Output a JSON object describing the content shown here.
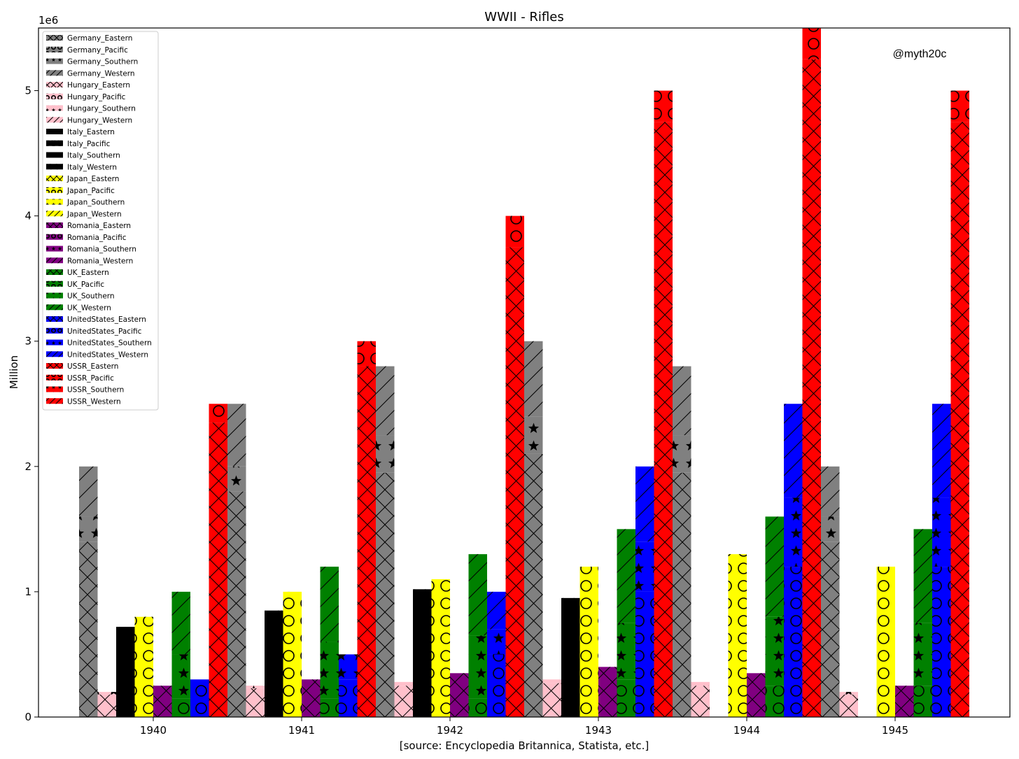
{
  "chart_data": {
    "type": "bar",
    "title": "WWII - Rifles",
    "xlabel": "[source: Encyclopedia Britannica, Statista, etc.]",
    "ylabel": "Million",
    "scale_label": "1e6",
    "watermark": "@myth20c",
    "ylim": [
      0,
      5500000
    ],
    "yticks": [
      0,
      1000000,
      2000000,
      3000000,
      4000000,
      5000000
    ],
    "ytick_labels": [
      "0",
      "1",
      "2",
      "3",
      "4",
      "5"
    ],
    "categories": [
      "1940",
      "1941",
      "1942",
      "1943",
      "1944",
      "1945"
    ],
    "legend_position": "upper-left",
    "countries": [
      {
        "name": "Germany",
        "color": "#808080"
      },
      {
        "name": "Hungary",
        "color": "#FFC0CB"
      },
      {
        "name": "Italy",
        "color": "#000000"
      },
      {
        "name": "Japan",
        "color": "#FFFF00"
      },
      {
        "name": "Romania",
        "color": "#800080"
      },
      {
        "name": "UK",
        "color": "#008000"
      },
      {
        "name": "UnitedStates",
        "color": "#0000FF"
      },
      {
        "name": "USSR",
        "color": "#FF0000"
      }
    ],
    "theaters": [
      {
        "name": "Eastern",
        "hatch": "cross"
      },
      {
        "name": "Pacific",
        "hatch": "circles"
      },
      {
        "name": "Southern",
        "hatch": "stars"
      },
      {
        "name": "Western",
        "hatch": "diag"
      }
    ],
    "series": [
      {
        "name": "Germany_Eastern",
        "values": [
          1400000,
          1800000,
          1950000,
          2100000,
          1950000,
          1400000
        ]
      },
      {
        "name": "Germany_Pacific",
        "values": [
          0,
          0,
          0,
          0,
          0,
          0
        ]
      },
      {
        "name": "Germany_Southern",
        "values": [
          200000,
          200000,
          300000,
          300000,
          300000,
          200000
        ]
      },
      {
        "name": "Germany_Western",
        "values": [
          400000,
          500000,
          550000,
          600000,
          550000,
          400000
        ]
      },
      {
        "name": "Hungary_Eastern",
        "values": [
          180000,
          230000,
          250000,
          270000,
          250000,
          180000
        ]
      },
      {
        "name": "Hungary_Pacific",
        "values": [
          0,
          0,
          0,
          0,
          0,
          0
        ]
      },
      {
        "name": "Hungary_Southern",
        "values": [
          20000,
          20000,
          30000,
          30000,
          30000,
          20000
        ]
      },
      {
        "name": "Hungary_Western",
        "values": [
          0,
          0,
          0,
          0,
          0,
          0
        ]
      },
      {
        "name": "Italy_Eastern",
        "values": [
          720000,
          850000,
          1020000,
          950000,
          0,
          0
        ]
      },
      {
        "name": "Italy_Pacific",
        "values": [
          0,
          0,
          0,
          0,
          0,
          0
        ]
      },
      {
        "name": "Italy_Southern",
        "values": [
          0,
          0,
          0,
          0,
          0,
          0
        ]
      },
      {
        "name": "Italy_Western",
        "values": [
          0,
          0,
          0,
          0,
          0,
          0
        ]
      },
      {
        "name": "Japan_Eastern",
        "values": [
          0,
          0,
          0,
          0,
          0,
          0
        ]
      },
      {
        "name": "Japan_Pacific",
        "values": [
          800000,
          1000000,
          1100000,
          1200000,
          1300000,
          1200000
        ]
      },
      {
        "name": "Japan_Southern",
        "values": [
          0,
          0,
          0,
          0,
          0,
          0
        ]
      },
      {
        "name": "Japan_Western",
        "values": [
          0,
          0,
          0,
          0,
          0,
          0
        ]
      },
      {
        "name": "Romania_Eastern",
        "values": [
          250000,
          300000,
          350000,
          400000,
          350000,
          250000
        ]
      },
      {
        "name": "Romania_Pacific",
        "values": [
          0,
          0,
          0,
          0,
          0,
          0
        ]
      },
      {
        "name": "Romania_Southern",
        "values": [
          0,
          0,
          0,
          0,
          0,
          0
        ]
      },
      {
        "name": "Romania_Western",
        "values": [
          0,
          0,
          0,
          0,
          0,
          0
        ]
      },
      {
        "name": "UK_Eastern",
        "values": [
          0,
          0,
          0,
          0,
          0,
          0
        ]
      },
      {
        "name": "UK_Pacific",
        "values": [
          150000,
          150000,
          150000,
          300000,
          250000,
          250000
        ]
      },
      {
        "name": "UK_Southern",
        "values": [
          350000,
          450000,
          500000,
          450000,
          550000,
          500000
        ]
      },
      {
        "name": "UK_Western",
        "values": [
          500000,
          600000,
          650000,
          750000,
          800000,
          750000
        ]
      },
      {
        "name": "UnitedStates_Eastern",
        "values": [
          0,
          0,
          0,
          0,
          0,
          0
        ]
      },
      {
        "name": "UnitedStates_Pacific",
        "values": [
          300000,
          300000,
          500000,
          1000000,
          1200000,
          1200000
        ]
      },
      {
        "name": "UnitedStates_Southern",
        "values": [
          0,
          200000,
          200000,
          400000,
          550000,
          550000
        ]
      },
      {
        "name": "UnitedStates_Western",
        "values": [
          0,
          0,
          300000,
          600000,
          750000,
          750000
        ]
      },
      {
        "name": "USSR_Eastern",
        "values": [
          2350000,
          2800000,
          3750000,
          4750000,
          5250000,
          4750000
        ]
      },
      {
        "name": "USSR_Pacific",
        "values": [
          150000,
          200000,
          250000,
          250000,
          250000,
          250000
        ]
      },
      {
        "name": "USSR_Southern",
        "values": [
          0,
          0,
          0,
          0,
          0,
          0
        ]
      },
      {
        "name": "USSR_Western",
        "values": [
          0,
          0,
          0,
          0,
          0,
          0
        ]
      }
    ]
  }
}
